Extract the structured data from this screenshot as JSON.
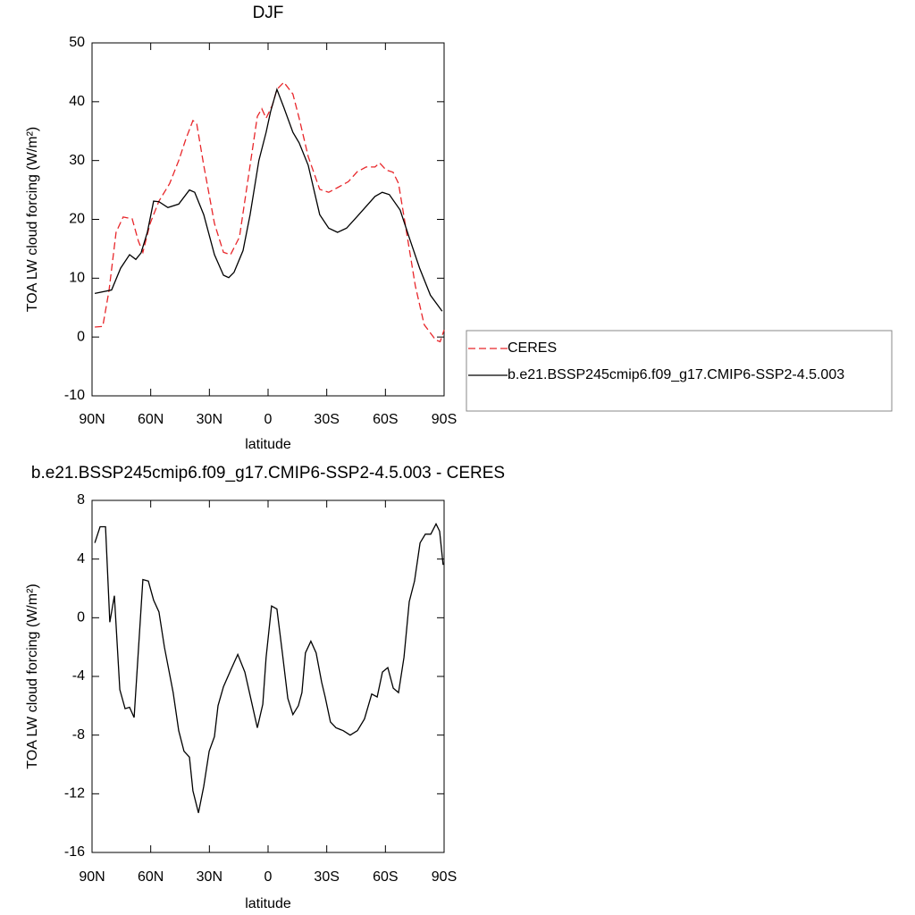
{
  "chart_data": [
    {
      "type": "line",
      "title": "DJF",
      "xlabel": "latitude",
      "ylabel": "TOA LW cloud forcing (W/m²)",
      "xlim": [
        90,
        -90
      ],
      "ylim": [
        -10,
        50
      ],
      "xticks": [
        {
          "value": 90,
          "label": "90N"
        },
        {
          "value": 60,
          "label": "60N"
        },
        {
          "value": 30,
          "label": "30N"
        },
        0,
        {
          "value": -30,
          "label": "30S"
        },
        {
          "value": -60,
          "label": "60S"
        },
        {
          "value": -90,
          "label": "90S"
        }
      ],
      "yticks": [
        -10,
        0,
        10,
        20,
        30,
        40,
        50
      ],
      "legend": "right",
      "series": [
        {
          "name": "CERES",
          "color": "#e8262a",
          "dash": "dashed",
          "x": [
            88.6,
            84.5,
            81.3,
            77.7,
            74.1,
            69.5,
            66.3,
            64,
            60.3,
            55.8,
            50.3,
            45.7,
            42,
            38.4,
            36.5,
            32.9,
            27.4,
            22.8,
            19.2,
            14.6,
            9.2,
            5.5,
            3.2,
            1,
            -2.2,
            -4.5,
            -8.1,
            -12.7,
            -15.9,
            -20.5,
            -26.4,
            -31,
            -35.5,
            -41,
            -45.6,
            -50.1,
            -54.7,
            -57,
            -60.3,
            -63.9,
            -66.7,
            -70.8,
            -75.3,
            -79.8,
            -85.7,
            -88,
            -90
          ],
          "values": [
            1.7,
            1.8,
            7.9,
            17.8,
            20.4,
            20.1,
            16.3,
            14.4,
            19.3,
            23.1,
            26.1,
            30,
            33.7,
            36.8,
            36.3,
            29.2,
            19.3,
            14.4,
            14,
            17,
            29.2,
            37.5,
            38.8,
            37.2,
            39.4,
            42.1,
            43.3,
            41.3,
            37.2,
            30.7,
            25.1,
            24.6,
            25.4,
            26.4,
            28.1,
            28.9,
            28.9,
            29.6,
            28.4,
            28,
            26.1,
            17.8,
            8.7,
            2.1,
            -0.5,
            -0.8,
            1.2
          ]
        },
        {
          "name": "b.e21.BSSP245cmip6.f09_g17.CMIP6-SSP2-4.5.003",
          "color": "#000000",
          "dash": "solid",
          "x": [
            88.6,
            80,
            75.4,
            70.8,
            67.6,
            64.9,
            61.7,
            58.5,
            55.8,
            51.2,
            45.7,
            40.2,
            37.5,
            32.9,
            27.4,
            22.8,
            20.1,
            17.4,
            12.8,
            9.2,
            4.7,
            1,
            -1.3,
            -4.5,
            -8.1,
            -12.7,
            -15.9,
            -20.5,
            -26.4,
            -31,
            -35.5,
            -40.1,
            -45.6,
            -54.7,
            -58.4,
            -62,
            -67.5,
            -72.1,
            -77.5,
            -83,
            -89
          ],
          "values": [
            7.4,
            8,
            11.7,
            14,
            13.2,
            14.3,
            17.8,
            23.1,
            23,
            22,
            22.6,
            25,
            24.6,
            20.8,
            14,
            10.5,
            10.1,
            11,
            14.7,
            20.8,
            30,
            34.8,
            38.3,
            42.1,
            39,
            34.8,
            33,
            29.2,
            20.8,
            18.5,
            17.8,
            18.5,
            20.5,
            23.9,
            24.6,
            24.2,
            21.6,
            17,
            11.7,
            7.1,
            4.4
          ]
        }
      ]
    },
    {
      "type": "line",
      "title": "b.e21.BSSP245cmip6.f09_g17.CMIP6-SSP2-4.5.003 - CERES",
      "xlabel": "latitude",
      "ylabel": "TOA LW cloud forcing (W/m²)",
      "xlim": [
        90,
        -90
      ],
      "ylim": [
        -16,
        8
      ],
      "xticks": [
        {
          "value": 90,
          "label": "90N"
        },
        {
          "value": 60,
          "label": "60N"
        },
        {
          "value": 30,
          "label": "30N"
        },
        0,
        {
          "value": -30,
          "label": "30S"
        },
        {
          "value": -60,
          "label": "60S"
        },
        {
          "value": -90,
          "label": "90S"
        }
      ],
      "yticks": [
        -16,
        -12,
        -8,
        -4,
        0,
        4,
        8
      ],
      "series": [
        {
          "color": "#000000",
          "dash": "solid",
          "x": [
            88.6,
            85.9,
            83.1,
            80.9,
            78.6,
            75.8,
            73.1,
            70.8,
            68.5,
            64,
            61.2,
            58.5,
            55.8,
            53,
            48.5,
            45.7,
            43,
            40.2,
            38.4,
            35.6,
            32.9,
            30.1,
            27.4,
            25.6,
            22.8,
            19.2,
            15.5,
            11.9,
            9.2,
            5.5,
            2.7,
            1,
            -1.8,
            -4.5,
            -7.3,
            -10.1,
            -12.7,
            -15.5,
            -17.3,
            -19.1,
            -21.9,
            -24.6,
            -27.4,
            -29.2,
            -31.9,
            -34.7,
            -38.4,
            -42,
            -45.7,
            -49.3,
            -53,
            -55.8,
            -58.5,
            -61.2,
            -64,
            -66.7,
            -69.5,
            -72.2,
            -74.9,
            -77.7,
            -80.4,
            -83.2,
            -85.9,
            -87.7,
            -89.5
          ],
          "values": [
            5.1,
            6.2,
            6.2,
            -0.3,
            1.5,
            -4.9,
            -6.2,
            -6.1,
            -6.8,
            2.6,
            2.5,
            1.2,
            0.4,
            -2,
            -5.1,
            -7.7,
            -9.1,
            -9.5,
            -11.8,
            -13.3,
            -11.5,
            -9.1,
            -8.1,
            -6,
            -4.7,
            -3.6,
            -2.5,
            -3.7,
            -5.3,
            -7.5,
            -5.9,
            -2.7,
            0.8,
            0.6,
            -2.4,
            -5.5,
            -6.6,
            -6,
            -5.1,
            -2.4,
            -1.6,
            -2.4,
            -4.4,
            -5.4,
            -7.1,
            -7.5,
            -7.7,
            -8,
            -7.7,
            -6.9,
            -5.2,
            -5.4,
            -3.7,
            -3.4,
            -4.8,
            -5.1,
            -2.7,
            1.1,
            2.5,
            5.1,
            5.7,
            5.7,
            6.4,
            5.9,
            3.6
          ]
        }
      ]
    }
  ]
}
